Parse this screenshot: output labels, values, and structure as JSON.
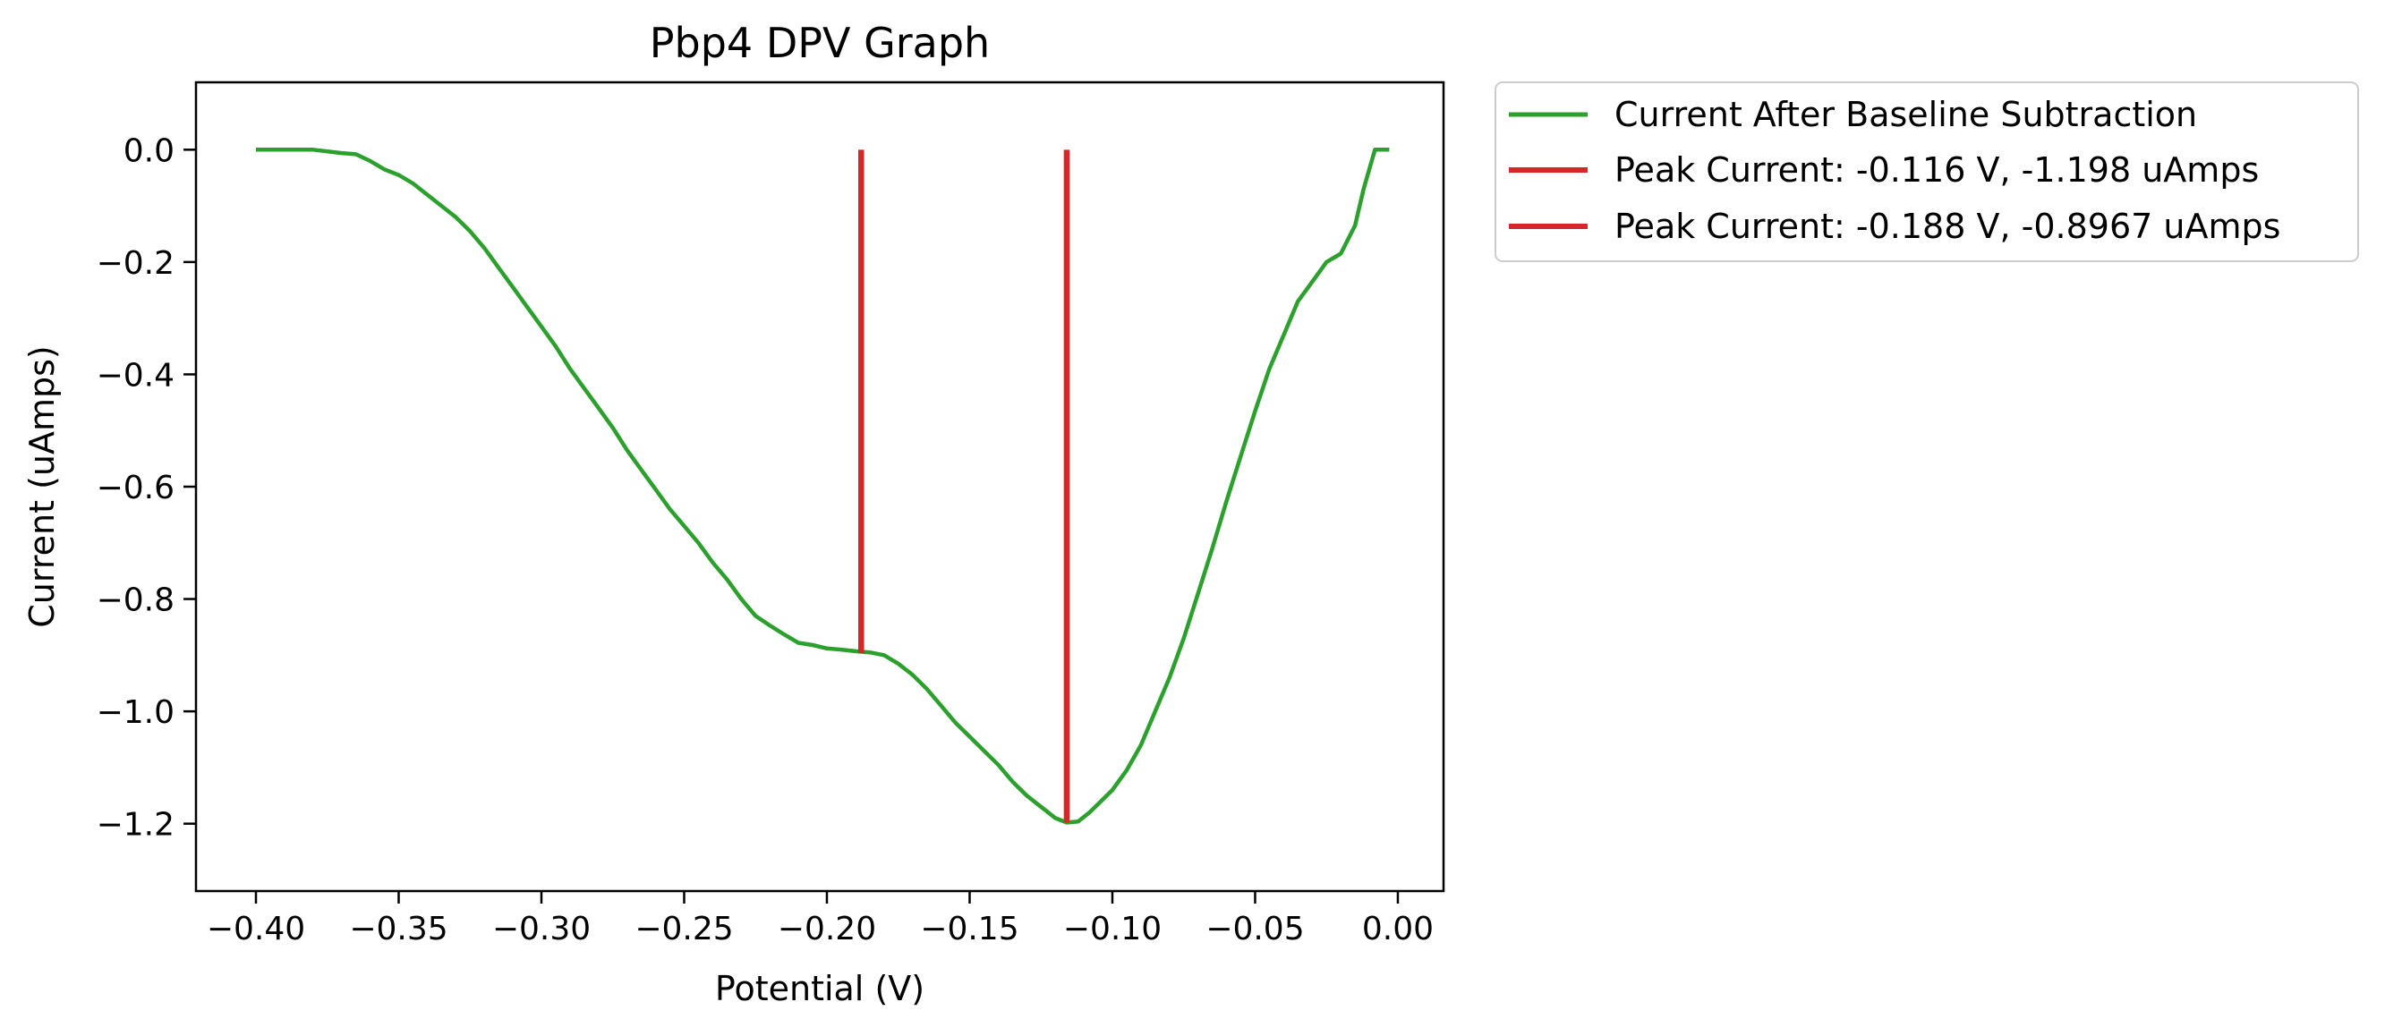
{
  "chart_data": {
    "type": "line",
    "title": "Pbp4 DPV Graph",
    "xlabel": "Potential (V)",
    "ylabel": "Current (uAmps)",
    "xlim": [
      -0.421,
      0.016
    ],
    "ylim": [
      -1.32,
      0.12
    ],
    "x_ticks": [
      -0.4,
      -0.35,
      -0.3,
      -0.25,
      -0.2,
      -0.15,
      -0.1,
      -0.05,
      0.0
    ],
    "x_tick_labels": [
      "−0.40",
      "−0.35",
      "−0.30",
      "−0.25",
      "−0.20",
      "−0.15",
      "−0.10",
      "−0.05",
      "0.00"
    ],
    "y_ticks": [
      0.0,
      -0.2,
      -0.4,
      -0.6,
      -0.8,
      -1.0,
      -1.2
    ],
    "y_tick_labels": [
      "0.0",
      "−0.2",
      "−0.4",
      "−0.6",
      "−0.8",
      "−1.0",
      "−1.2"
    ],
    "grid": false,
    "legend_position": "outside-top-right",
    "series": [
      {
        "name": "Current After Baseline Subtraction",
        "color": "#2ca02c",
        "x": [
          -0.4,
          -0.38,
          -0.37,
          -0.365,
          -0.36,
          -0.355,
          -0.35,
          -0.345,
          -0.34,
          -0.335,
          -0.33,
          -0.325,
          -0.32,
          -0.315,
          -0.31,
          -0.305,
          -0.3,
          -0.295,
          -0.29,
          -0.285,
          -0.28,
          -0.275,
          -0.27,
          -0.265,
          -0.26,
          -0.255,
          -0.25,
          -0.245,
          -0.24,
          -0.235,
          -0.23,
          -0.225,
          -0.22,
          -0.215,
          -0.21,
          -0.205,
          -0.2,
          -0.195,
          -0.19,
          -0.185,
          -0.18,
          -0.175,
          -0.17,
          -0.165,
          -0.16,
          -0.155,
          -0.15,
          -0.145,
          -0.14,
          -0.135,
          -0.13,
          -0.125,
          -0.12,
          -0.116,
          -0.112,
          -0.108,
          -0.104,
          -0.1,
          -0.095,
          -0.09,
          -0.085,
          -0.08,
          -0.075,
          -0.07,
          -0.065,
          -0.06,
          -0.055,
          -0.05,
          -0.045,
          -0.04,
          -0.035,
          -0.03,
          -0.025,
          -0.02,
          -0.015,
          -0.012,
          -0.008,
          -0.006,
          -0.003
        ],
        "y": [
          0.0,
          0.0,
          -0.006,
          -0.008,
          -0.02,
          -0.035,
          -0.045,
          -0.06,
          -0.08,
          -0.1,
          -0.12,
          -0.145,
          -0.175,
          -0.21,
          -0.245,
          -0.28,
          -0.315,
          -0.35,
          -0.39,
          -0.425,
          -0.46,
          -0.495,
          -0.535,
          -0.57,
          -0.605,
          -0.64,
          -0.67,
          -0.7,
          -0.735,
          -0.765,
          -0.8,
          -0.83,
          -0.847,
          -0.863,
          -0.878,
          -0.882,
          -0.888,
          -0.89,
          -0.893,
          -0.895,
          -0.9,
          -0.915,
          -0.935,
          -0.96,
          -0.99,
          -1.02,
          -1.045,
          -1.07,
          -1.095,
          -1.125,
          -1.15,
          -1.17,
          -1.19,
          -1.198,
          -1.196,
          -1.18,
          -1.16,
          -1.14,
          -1.105,
          -1.06,
          -1.0,
          -0.94,
          -0.87,
          -0.79,
          -0.71,
          -0.625,
          -0.545,
          -0.465,
          -0.39,
          -0.33,
          -0.27,
          -0.235,
          -0.2,
          -0.185,
          -0.135,
          -0.07,
          0.0,
          0.0,
          0.0
        ]
      },
      {
        "name": "Peak Current: -0.116 V, -1.198 uAmps",
        "color": "#d62728",
        "x": [
          -0.116,
          -0.116
        ],
        "y": [
          -1.198,
          0.0
        ]
      },
      {
        "name": "Peak Current: -0.188 V, -0.8967 uAmps",
        "color": "#d62728",
        "x": [
          -0.188,
          -0.188
        ],
        "y": [
          -0.8967,
          0.0
        ]
      }
    ]
  }
}
